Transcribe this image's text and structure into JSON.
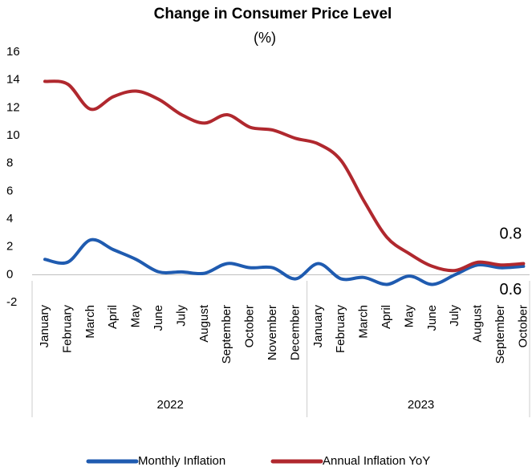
{
  "chart_data": {
    "type": "line",
    "title": "Change in Consumer Price Level",
    "subtitle": "(%)",
    "groups": [
      {
        "label": "2022",
        "categories": [
          "January",
          "February",
          "March",
          "April",
          "May",
          "June",
          "July",
          "August",
          "September",
          "October",
          "November",
          "December"
        ]
      },
      {
        "label": "2023",
        "categories": [
          "January",
          "February",
          "March",
          "April",
          "May",
          "June",
          "July",
          "August",
          "September",
          "October"
        ]
      }
    ],
    "series": [
      {
        "name": "Monthly Inflation",
        "color": "#1f5bb0",
        "values": [
          1.1,
          0.9,
          2.5,
          1.8,
          1.1,
          0.2,
          0.2,
          0.1,
          0.8,
          0.5,
          0.5,
          -0.3,
          0.8,
          -0.3,
          -0.2,
          -0.7,
          -0.1,
          -0.7,
          0.0,
          0.7,
          0.5,
          0.6
        ]
      },
      {
        "name": "Annual Inflation YoY",
        "color": "#b0282e",
        "values": [
          13.9,
          13.7,
          11.9,
          12.8,
          13.2,
          12.6,
          11.5,
          10.9,
          11.5,
          10.6,
          10.4,
          9.8,
          9.4,
          8.2,
          5.3,
          2.7,
          1.5,
          0.6,
          0.3,
          0.9,
          0.7,
          0.8
        ]
      }
    ],
    "data_labels": "last",
    "ylim": [
      -2,
      16
    ],
    "yticks": [
      -2,
      0,
      2,
      4,
      6,
      8,
      10,
      12,
      14,
      16
    ],
    "grid": false,
    "legend": "bottom"
  }
}
